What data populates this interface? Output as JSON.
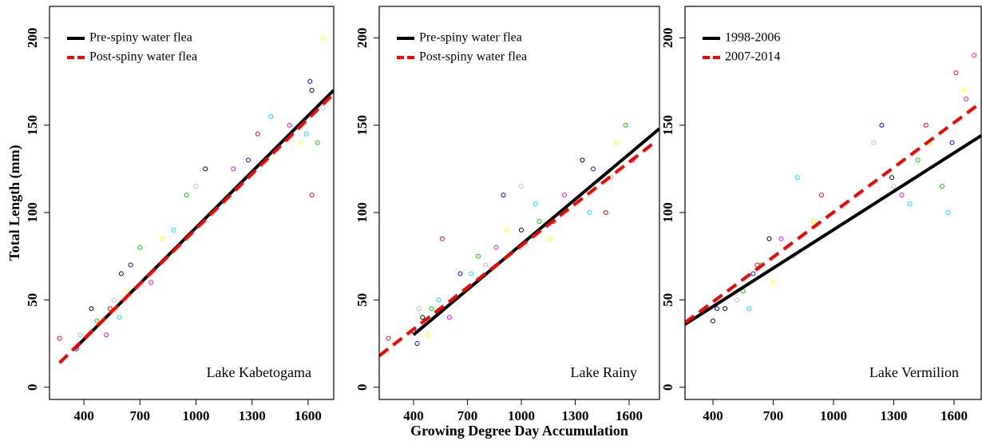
{
  "chart_data": [
    {
      "type": "scatter",
      "y_label": "Total Length (mm)",
      "annotation": "Lake Kabetogama",
      "xlim": [
        216,
        1737
      ],
      "ylim": [
        -7,
        218
      ],
      "xticks": [
        400,
        700,
        1000,
        1300,
        1600
      ],
      "yticks": [
        0,
        50,
        100,
        150,
        200
      ],
      "legend": "top-left",
      "series": [
        {
          "name": "Pre-spiny water flea",
          "color": "#000000",
          "dash": false,
          "x": [
            350,
            1737
          ],
          "values": [
            22,
            170
          ]
        },
        {
          "name": "Post-spiny water flea",
          "color": "#ff0000",
          "dash": true,
          "x": [
            270,
            1737
          ],
          "values": [
            14,
            168
          ]
        }
      ],
      "points": [
        {
          "color": "#000000",
          "x": [
            440,
            600,
            1050,
            1620
          ],
          "y": [
            45,
            65,
            125,
            170
          ]
        },
        {
          "color": "#bebebe",
          "x": [
            380,
            560,
            1000,
            1680
          ],
          "y": [
            30,
            50,
            115,
            160
          ]
        },
        {
          "color": "#0000ff",
          "x": [
            360,
            650,
            1280,
            1610
          ],
          "y": [
            22,
            70,
            130,
            175
          ]
        },
        {
          "color": "#00cd00",
          "x": [
            470,
            700,
            950,
            1650
          ],
          "y": [
            38,
            80,
            110,
            140
          ]
        },
        {
          "color": "#ff0000",
          "x": [
            270,
            540,
            1330,
            1620
          ],
          "y": [
            28,
            45,
            145,
            110
          ]
        },
        {
          "color": "#ff00ff",
          "x": [
            520,
            760,
            1200,
            1500
          ],
          "y": [
            30,
            60,
            125,
            150
          ]
        },
        {
          "color": "#00e5ee",
          "x": [
            590,
            880,
            1400,
            1590
          ],
          "y": [
            40,
            90,
            155,
            145
          ]
        },
        {
          "color": "#ffff00",
          "x": [
            640,
            820,
            1560,
            1680
          ],
          "y": [
            55,
            85,
            140,
            200
          ]
        }
      ]
    },
    {
      "type": "scatter",
      "x_label": "Growing Degree Day Accumulation",
      "annotation": "Lake Rainy",
      "xlim": [
        209,
        1769
      ],
      "ylim": [
        -7,
        218
      ],
      "xticks": [
        400,
        700,
        1000,
        1300,
        1600
      ],
      "yticks": [
        0,
        50,
        100,
        150,
        200
      ],
      "legend": "top-left",
      "series": [
        {
          "name": "Pre-spiny water flea",
          "color": "#000000",
          "dash": false,
          "x": [
            400,
            1769
          ],
          "values": [
            30,
            148
          ]
        },
        {
          "name": "Post-spiny water flea",
          "color": "#ff0000",
          "dash": true,
          "x": [
            209,
            1740
          ],
          "values": [
            18,
            140
          ]
        }
      ],
      "points": [
        {
          "color": "#000000",
          "x": [
            400,
            450,
            1000,
            1340
          ],
          "y": [
            32,
            40,
            90,
            130
          ]
        },
        {
          "color": "#bebebe",
          "x": [
            430,
            800,
            1000,
            1500
          ],
          "y": [
            45,
            70,
            115,
            120
          ]
        },
        {
          "color": "#0000ff",
          "x": [
            420,
            660,
            900,
            1400
          ],
          "y": [
            25,
            65,
            110,
            125
          ]
        },
        {
          "color": "#00cd00",
          "x": [
            500,
            760,
            1100,
            1580
          ],
          "y": [
            45,
            75,
            95,
            150
          ]
        },
        {
          "color": "#ff0000",
          "x": [
            260,
            560,
            1180,
            1470
          ],
          "y": [
            28,
            85,
            95,
            100
          ]
        },
        {
          "color": "#ff00ff",
          "x": [
            600,
            860,
            1240,
            1620
          ],
          "y": [
            40,
            80,
            110,
            130
          ]
        },
        {
          "color": "#00e5ee",
          "x": [
            540,
            720,
            1080,
            1380
          ],
          "y": [
            50,
            65,
            105,
            100
          ]
        },
        {
          "color": "#ffff00",
          "x": [
            480,
            920,
            1160,
            1530
          ],
          "y": [
            30,
            90,
            85,
            140
          ]
        }
      ]
    },
    {
      "type": "scatter",
      "annotation": "Lake Vermilion",
      "xlim": [
        261,
        1735
      ],
      "ylim": [
        -7,
        218
      ],
      "xticks": [
        400,
        700,
        1000,
        1300,
        1600
      ],
      "yticks": [
        0,
        50,
        100,
        150,
        200
      ],
      "legend": "top-left",
      "series": [
        {
          "name": "1998-2006",
          "color": "#000000",
          "dash": false,
          "x": [
            261,
            1735
          ],
          "values": [
            36,
            144
          ]
        },
        {
          "name": "2007-2014",
          "color": "#ff0000",
          "dash": true,
          "x": [
            261,
            1735
          ],
          "values": [
            37,
            163
          ]
        }
      ],
      "points": [
        {
          "color": "#000000",
          "x": [
            400,
            460,
            680,
            1290
          ],
          "y": [
            38,
            45,
            85,
            120
          ]
        },
        {
          "color": "#bebebe",
          "x": [
            520,
            800,
            1200,
            1300
          ],
          "y": [
            50,
            75,
            140,
            115
          ]
        },
        {
          "color": "#0000ff",
          "x": [
            420,
            600,
            1240,
            1590
          ],
          "y": [
            45,
            65,
            150,
            140
          ]
        },
        {
          "color": "#00cd00",
          "x": [
            550,
            640,
            1420,
            1540
          ],
          "y": [
            55,
            70,
            130,
            115
          ]
        },
        {
          "color": "#ff0000",
          "x": [
            620,
            940,
            1460,
            1610
          ],
          "y": [
            70,
            110,
            150,
            180
          ]
        },
        {
          "color": "#ff00ff",
          "x": [
            740,
            1340,
            1660,
            1700
          ],
          "y": [
            85,
            110,
            165,
            190
          ]
        },
        {
          "color": "#00e5ee",
          "x": [
            580,
            820,
            1380,
            1570
          ],
          "y": [
            45,
            120,
            105,
            100
          ]
        },
        {
          "color": "#ffff00",
          "x": [
            700,
            900,
            1480,
            1650
          ],
          "y": [
            60,
            95,
            140,
            170
          ]
        }
      ]
    }
  ]
}
